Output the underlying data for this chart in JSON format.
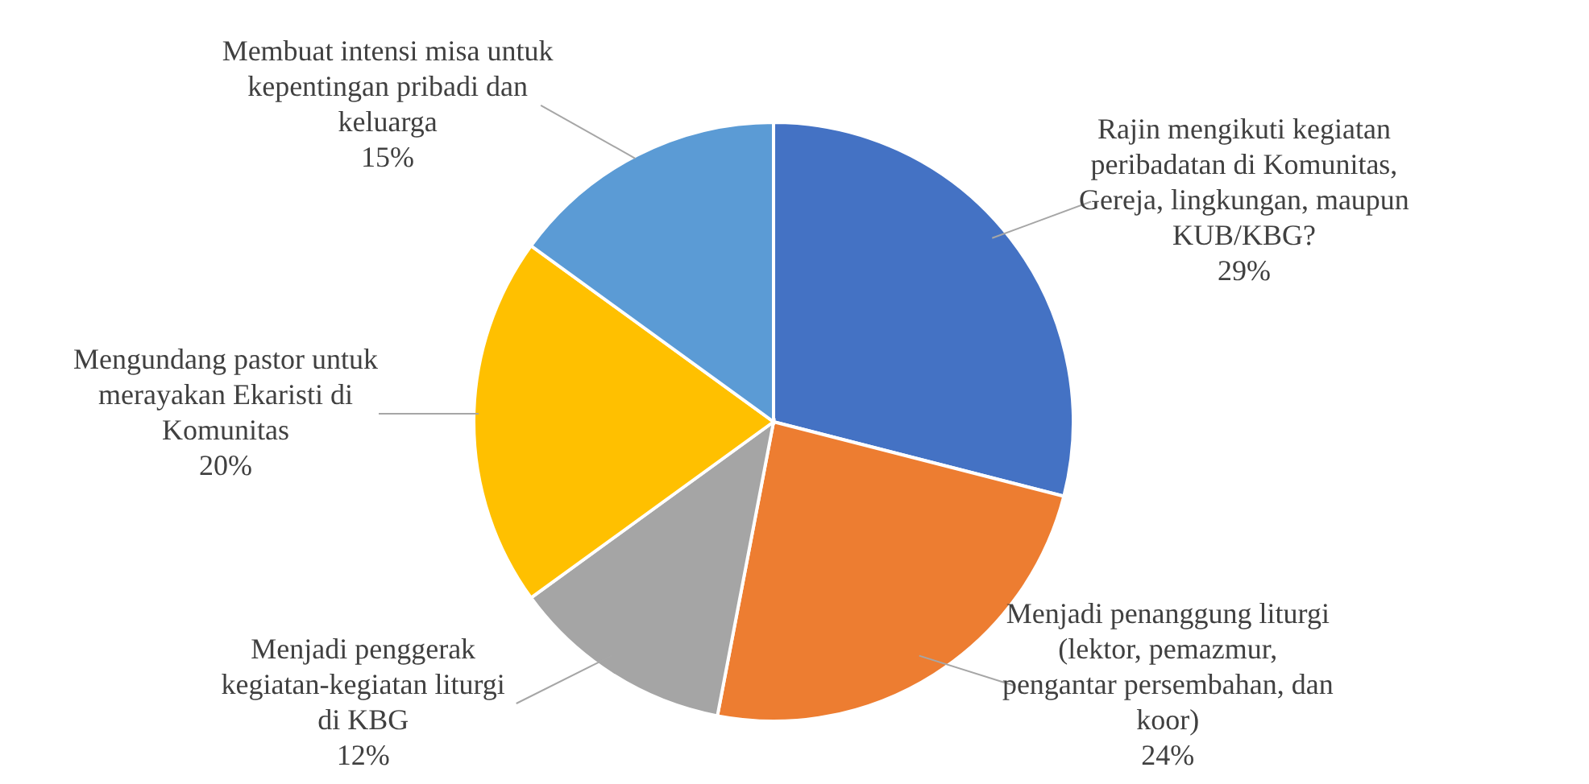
{
  "chart_data": {
    "type": "pie",
    "categories": [
      "Rajin mengikuti kegiatan peribadatan di Komunitas, Gereja, lingkungan, maupun KUB/KBG?",
      "Menjadi penanggung liturgi (lektor, pemazmur, pengantar persembahan, dan koor)",
      "Menjadi penggerak kegiatan-kegiatan liturgi di KBG",
      "Mengundang pastor untuk merayakan Ekaristi di Komunitas",
      "Membuat intensi misa untuk kepentingan pribadi dan keluarga"
    ],
    "values": [
      29,
      24,
      12,
      20,
      15
    ],
    "value_labels": [
      "29%",
      "24%",
      "12%",
      "20%",
      "15%"
    ],
    "colors": [
      "#4472c4",
      "#ed7d31",
      "#a5a5a5",
      "#ffc000",
      "#5b9bd5"
    ],
    "legend": false
  }
}
